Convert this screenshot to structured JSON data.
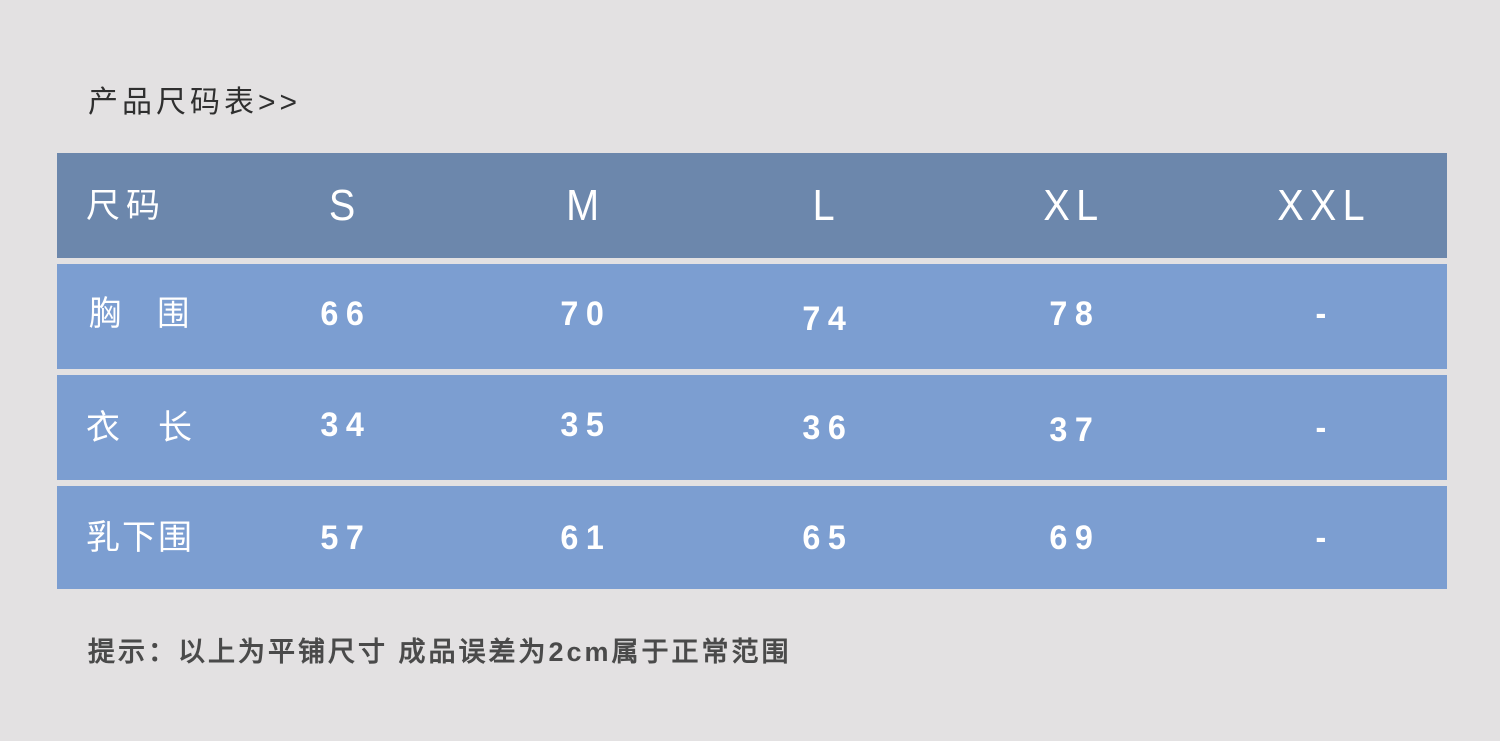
{
  "page": {
    "title": "产品尺码表>>",
    "note": "提示：以上为平铺尺寸 成品误差为2cm属于正常范围"
  },
  "chart_data": {
    "type": "table",
    "title": "产品尺码表",
    "header": {
      "label": "尺码",
      "columns": [
        "S",
        "M",
        "L",
        "XL",
        "XXL"
      ]
    },
    "rows": [
      {
        "label": "胸　围",
        "values": [
          "66",
          "70",
          "74",
          "78",
          "-"
        ]
      },
      {
        "label": "衣　长",
        "values": [
          "34",
          "35",
          "36",
          "37",
          "-"
        ]
      },
      {
        "label": "乳下围",
        "values": [
          "57",
          "61",
          "65",
          "69",
          "-"
        ]
      }
    ],
    "note": "提示：以上为平铺尺寸 成品误差为2cm属于正常范围",
    "colors": {
      "page_bg": "#E3E1E2",
      "header_bg": "#6C87AC",
      "row_bg": "#7C9ED1",
      "table_text": "#FFFFFF",
      "title_text": "#2F2F2F",
      "note_text": "#4A4A4A"
    }
  }
}
